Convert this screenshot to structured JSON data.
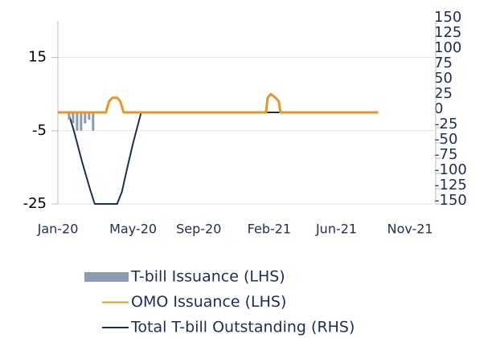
{
  "chart_data": {
    "type": "line",
    "xlim": [
      0,
      23.6
    ],
    "xticks": [
      {
        "value": 0,
        "label": "Jan-20"
      },
      {
        "value": 4.7,
        "label": "May-20"
      },
      {
        "value": 8.8,
        "label": "Sep-20"
      },
      {
        "value": 13.2,
        "label": "Feb-21"
      },
      {
        "value": 17.4,
        "label": "Jun-21"
      },
      {
        "value": 22,
        "label": "Nov-21"
      }
    ],
    "ylim": [
      -25,
      25
    ],
    "yticks": [
      -25,
      -5,
      15
    ],
    "y2lim": [
      -150,
      150
    ],
    "y2ticks": [
      -150,
      -125,
      -100,
      -75,
      -50,
      -25,
      0,
      25,
      50,
      75,
      100,
      125,
      150
    ],
    "grid": true,
    "series": [
      {
        "name": "T-bill Issuance (LHS)",
        "kind": "bar",
        "color": "#8e9bb3",
        "x": [
          0.7,
          0.95,
          1.2,
          1.45,
          1.7,
          1.95,
          2.2
        ],
        "values": [
          -2,
          -3,
          -5,
          -5,
          -3,
          -2,
          -5
        ]
      },
      {
        "name": "OMO Issuance (LHS)",
        "kind": "line",
        "color": "#e8962a",
        "x": [
          0,
          3.0,
          3.2,
          3.4,
          3.7,
          3.9,
          4.1,
          13.0,
          13.1,
          13.3,
          13.6,
          13.8,
          13.9,
          20.0
        ],
        "values": [
          0,
          0,
          3,
          4,
          4,
          3,
          0,
          0,
          4,
          5,
          4,
          3,
          0,
          0
        ]
      },
      {
        "name": "Total T-bill Outstanding (RHS)",
        "kind": "line",
        "axis": "y2",
        "color": "#1f2d50",
        "x": [
          0,
          0.65,
          1.0,
          1.5,
          2.0,
          2.3,
          3.7,
          4.0,
          4.3,
          4.7,
          5.0,
          5.2,
          20.0
        ],
        "values": [
          0,
          0,
          -30,
          -80,
          -125,
          -150,
          -150,
          -130,
          -95,
          -50,
          -20,
          0,
          0
        ]
      }
    ]
  }
}
